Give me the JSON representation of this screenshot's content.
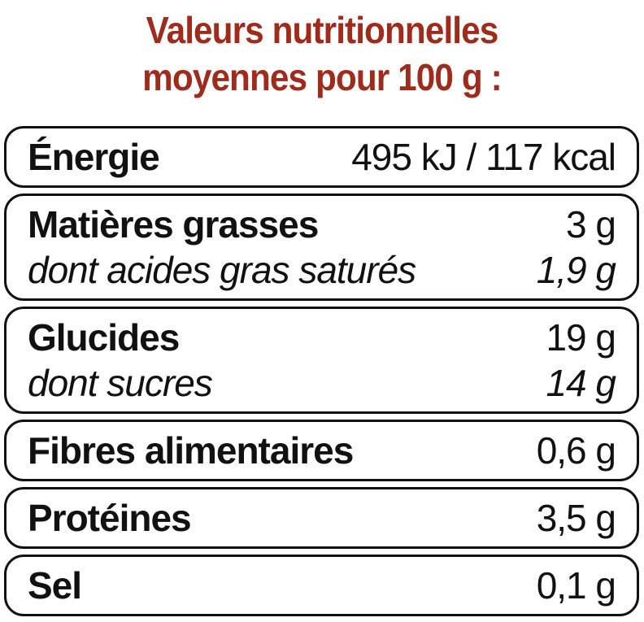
{
  "title": [
    "Valeurs nutritionnelles",
    "moyennes pour 100 g :"
  ],
  "groups": [
    {
      "main": [
        "Énergie",
        "495 kJ / 117 kcal"
      ]
    },
    {
      "main": [
        "Matières grasses",
        "3 g"
      ],
      "sub": [
        "dont acides gras saturés",
        "1,9 g"
      ]
    },
    {
      "main": [
        "Glucides",
        "19 g"
      ],
      "sub": [
        "dont sucres",
        "14 g"
      ]
    },
    {
      "main": [
        "Fibres alimentaires",
        "0,6 g"
      ]
    },
    {
      "main": [
        "Protéines",
        "3,5 g"
      ]
    },
    {
      "main": [
        "Sel",
        "0,1 g"
      ]
    }
  ]
}
